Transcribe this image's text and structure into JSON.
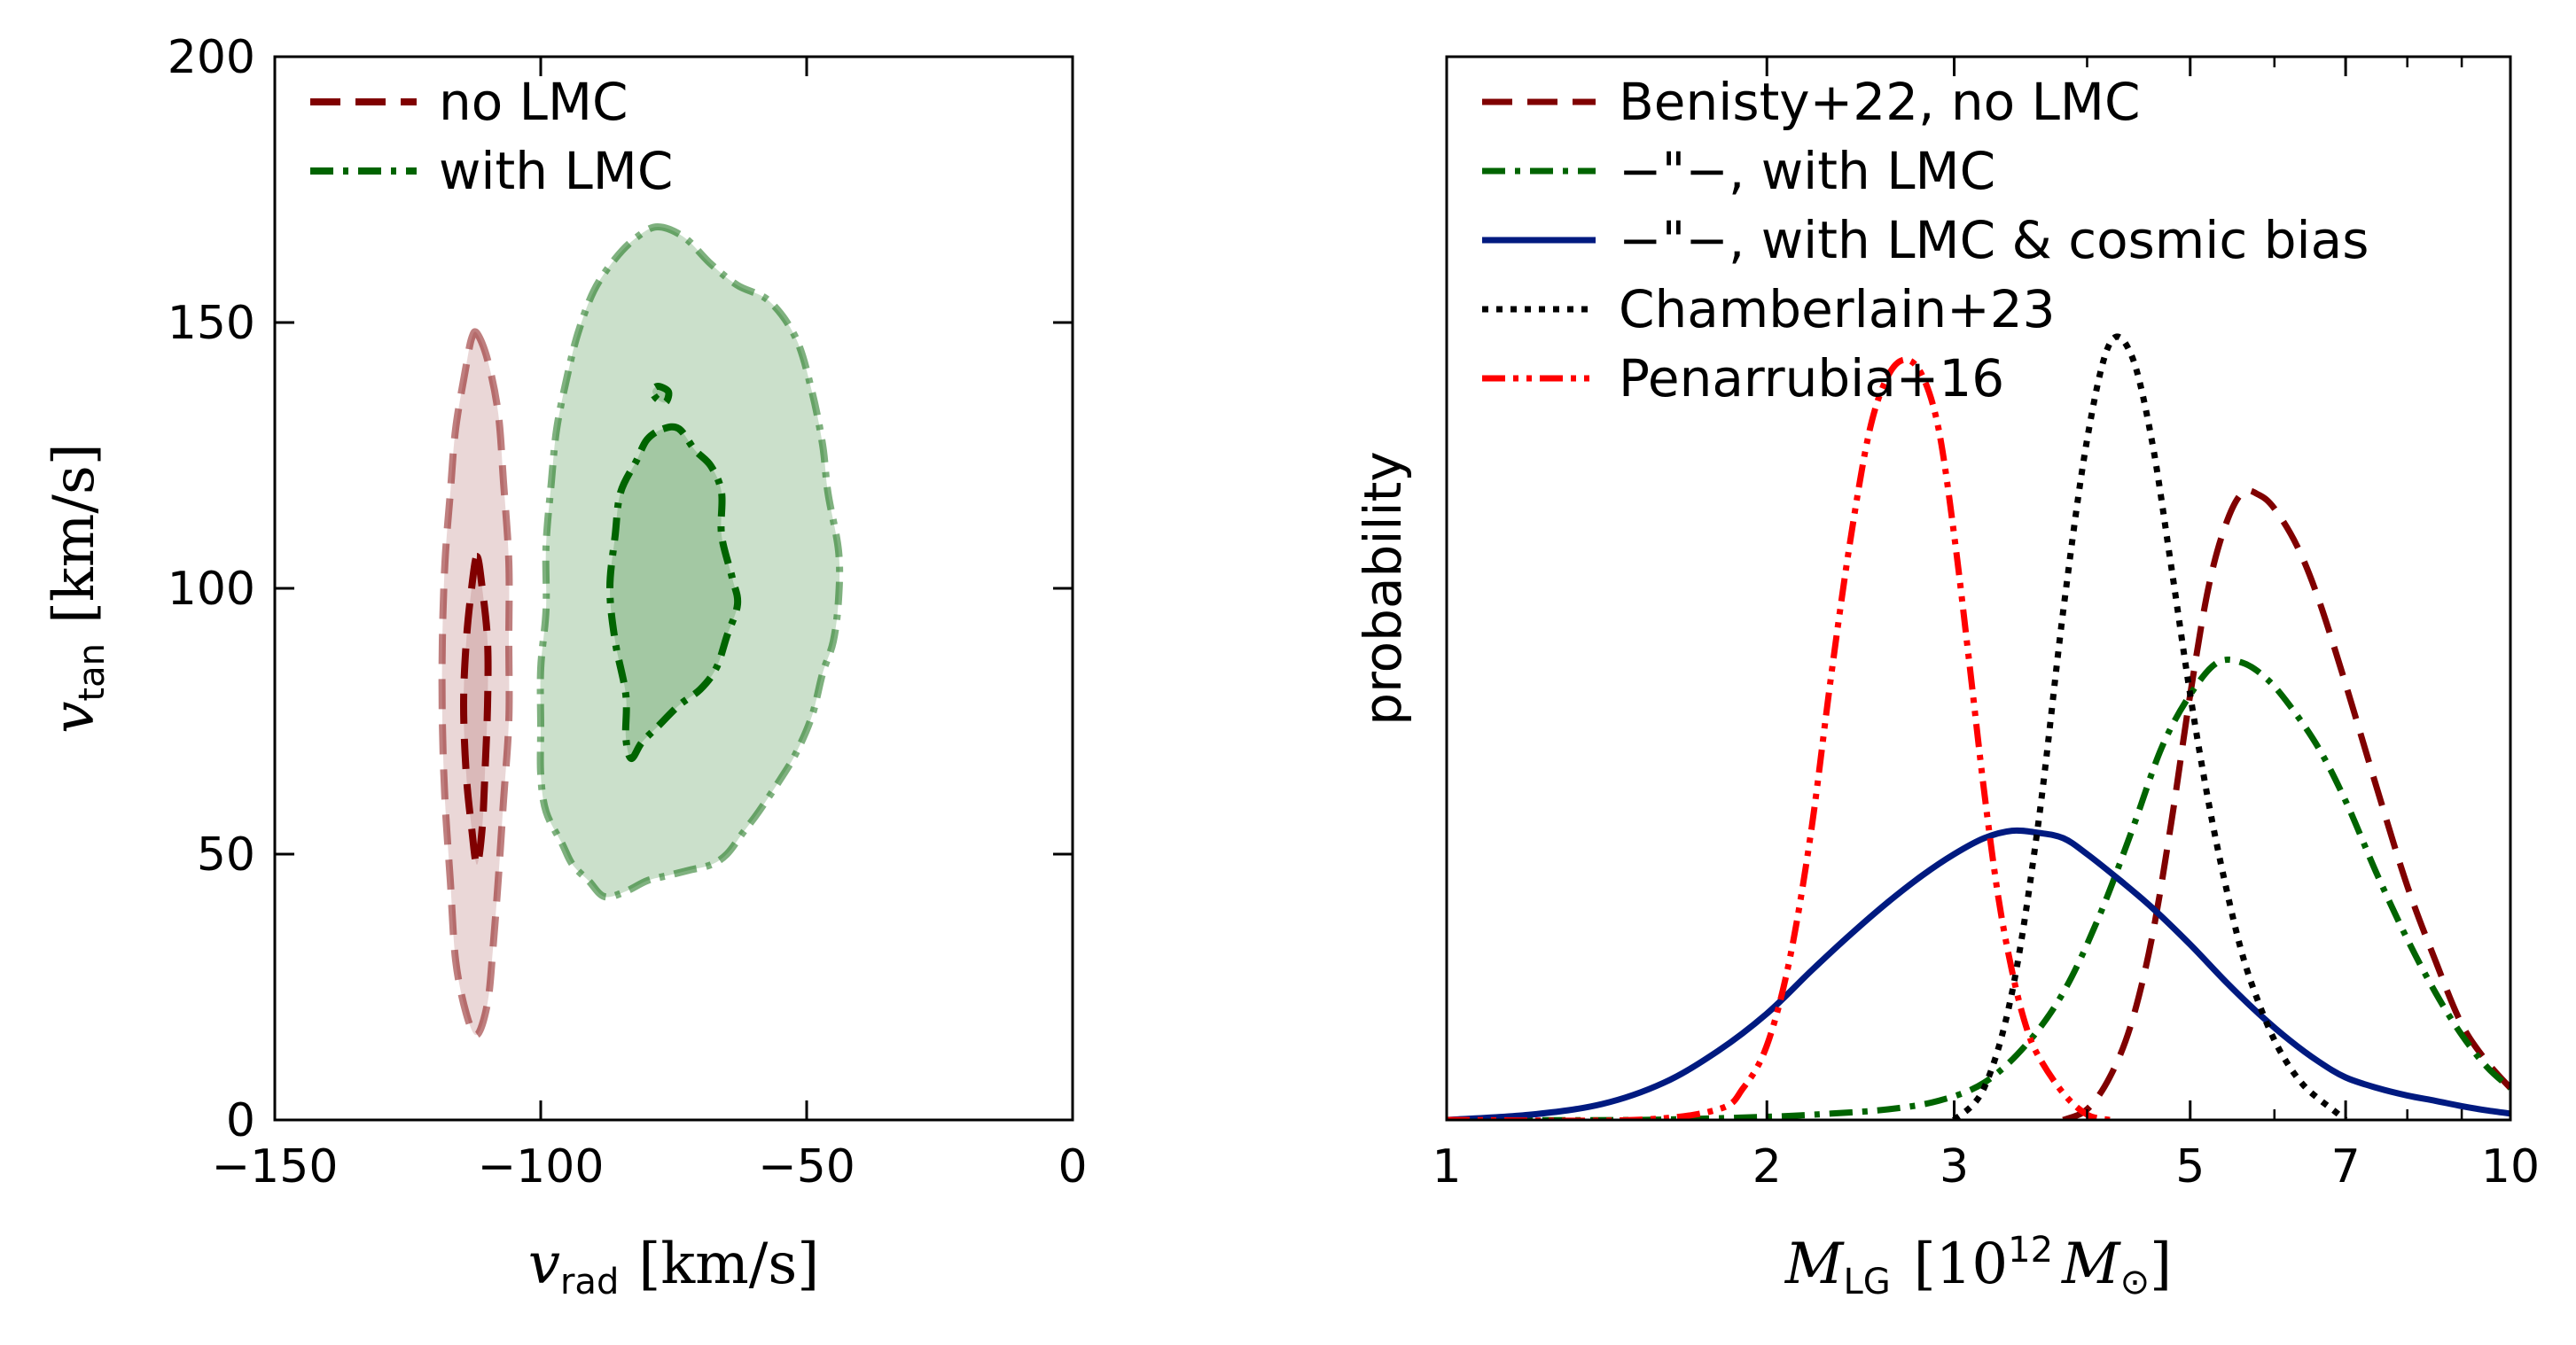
{
  "chart_data": [
    {
      "type": "contour",
      "title": "",
      "xlabel": {
        "symbol": "v",
        "subscript": "rad",
        "unit": "[km/s]"
      },
      "ylabel": {
        "symbol": "v",
        "subscript": "tan",
        "unit": "[km/s]"
      },
      "xlim": [
        -150,
        0
      ],
      "ylim": [
        0,
        200
      ],
      "xticks": [
        -150,
        -100,
        -50,
        0
      ],
      "xtick_labels": [
        "−150",
        "−100",
        "−50",
        "0"
      ],
      "yticks": [
        0,
        50,
        100,
        150,
        200
      ],
      "ytick_labels": [
        "0",
        "50",
        "100",
        "150",
        "200"
      ],
      "legend_position": "top-left",
      "series": [
        {
          "name": "no LMC",
          "color": "#800000",
          "fill": "#d9b7b7",
          "dash": "dashed",
          "outer": [
            [
              -112,
              148
            ],
            [
              -110,
              143
            ],
            [
              -108,
              133
            ],
            [
              -107,
              120
            ],
            [
              -106,
              105
            ],
            [
              -106,
              90
            ],
            [
              -106,
              75
            ],
            [
              -107,
              60
            ],
            [
              -108,
              45
            ],
            [
              -109,
              32
            ],
            [
              -110,
              22
            ],
            [
              -112,
              16
            ],
            [
              -114,
              20
            ],
            [
              -116,
              30
            ],
            [
              -117,
              45
            ],
            [
              -118,
              60
            ],
            [
              -118.5,
              75
            ],
            [
              -118.5,
              90
            ],
            [
              -118,
              105
            ],
            [
              -117,
              118
            ],
            [
              -116,
              130
            ],
            [
              -114,
              142
            ],
            [
              -113,
              147
            ]
          ],
          "inner": [
            [
              -112,
              106
            ],
            [
              -111,
              100
            ],
            [
              -110,
              90
            ],
            [
              -110,
              78
            ],
            [
              -110.5,
              65
            ],
            [
              -111,
              55
            ],
            [
              -112,
              48
            ],
            [
              -113,
              55
            ],
            [
              -114,
              65
            ],
            [
              -114.5,
              78
            ],
            [
              -114,
              90
            ],
            [
              -113,
              100
            ]
          ]
        },
        {
          "name": "with LMC",
          "color": "#006400",
          "fill": "#a0c6a0",
          "dash": "dashdot",
          "outer": [
            [
              -78,
              168
            ],
            [
              -73,
              166
            ],
            [
              -68,
              161
            ],
            [
              -63,
              157
            ],
            [
              -57,
              154
            ],
            [
              -52,
              147
            ],
            [
              -49,
              137
            ],
            [
              -47,
              127
            ],
            [
              -46,
              118
            ],
            [
              -44,
              107
            ],
            [
              -44,
              98
            ],
            [
              -45,
              90
            ],
            [
              -47,
              84
            ],
            [
              -49,
              76
            ],
            [
              -52,
              69
            ],
            [
              -55,
              64
            ],
            [
              -59,
              58
            ],
            [
              -62,
              54
            ],
            [
              -65,
              50
            ],
            [
              -68,
              48
            ],
            [
              -72,
              47
            ],
            [
              -76,
              46
            ],
            [
              -80,
              45
            ],
            [
              -84,
              43
            ],
            [
              -88,
              42
            ],
            [
              -91,
              45
            ],
            [
              -94,
              48
            ],
            [
              -96,
              52
            ],
            [
              -99,
              58
            ],
            [
              -100,
              65
            ],
            [
              -100,
              74
            ],
            [
              -100,
              85
            ],
            [
              -99,
              96
            ],
            [
              -99,
              108
            ],
            [
              -98,
              120
            ],
            [
              -97,
              130
            ],
            [
              -95,
              140
            ],
            [
              -93,
              148
            ],
            [
              -90,
              156
            ],
            [
              -86,
              162
            ],
            [
              -82,
              166
            ]
          ],
          "inner": [
            [
              -77,
              130
            ],
            [
              -74,
              130
            ],
            [
              -71,
              126
            ],
            [
              -68,
              123
            ],
            [
              -66,
              118
            ],
            [
              -66,
              110
            ],
            [
              -64,
              102
            ],
            [
              -63,
              97
            ],
            [
              -65,
              91
            ],
            [
              -67,
              85
            ],
            [
              -70,
              81
            ],
            [
              -74,
              78
            ],
            [
              -78,
              74
            ],
            [
              -81,
              71
            ],
            [
              -83,
              68
            ],
            [
              -84,
              72
            ],
            [
              -84,
              80
            ],
            [
              -86,
              90
            ],
            [
              -87,
              100
            ],
            [
              -86,
              110
            ],
            [
              -85,
              118
            ],
            [
              -82,
              124
            ],
            [
              -80,
              128
            ]
          ],
          "islands": [
            [
              [
                -78,
                138
              ],
              [
                -76,
                137
              ],
              [
                -76.5,
                135
              ],
              [
                -78,
                135.5
              ],
              [
                -79,
                137
              ]
            ]
          ]
        }
      ]
    },
    {
      "type": "line",
      "title": "",
      "xscale": "log",
      "xlabel": {
        "symbol": "M",
        "subscript": "LG",
        "unit": "[10",
        "superscript": "12",
        "unit_symbol": "M",
        "unit_subscript": "⊙",
        "unit_close": "]"
      },
      "ylabel": "probability",
      "xlim": [
        1,
        10
      ],
      "ylim": [
        0,
        1
      ],
      "xticks": [
        1,
        2,
        3,
        5,
        7,
        10
      ],
      "xtick_labels": [
        "1",
        "2",
        "3",
        "5",
        "7",
        "10"
      ],
      "legend_position": "top-left",
      "series": [
        {
          "name": "Benisty+22, no LMC",
          "color": "#800000",
          "dash": "dashed",
          "x": [
            3.8,
            4.0,
            4.2,
            4.4,
            4.6,
            4.8,
            5.0,
            5.2,
            5.4,
            5.6,
            5.8,
            6.0,
            6.3,
            6.6,
            7.0,
            7.5,
            8.0,
            8.5,
            9.0,
            9.5,
            10.0
          ],
          "y": [
            0,
            0.01,
            0.04,
            0.09,
            0.17,
            0.28,
            0.4,
            0.5,
            0.56,
            0.59,
            0.588,
            0.575,
            0.54,
            0.49,
            0.41,
            0.31,
            0.22,
            0.15,
            0.09,
            0.055,
            0.03
          ]
        },
        {
          "name": "−\"−, with LMC",
          "color": "#006400",
          "dash": "dashdot",
          "x": [
            1.0,
            1.5,
            2.0,
            2.3,
            2.6,
            2.9,
            3.2,
            3.5,
            3.8,
            4.1,
            4.4,
            4.7,
            5.0,
            5.3,
            5.6,
            5.9,
            6.2,
            6.6,
            7.0,
            7.5,
            8.0,
            8.5,
            9.0,
            9.5,
            10.0
          ],
          "y": [
            0,
            0,
            0.003,
            0.006,
            0.01,
            0.018,
            0.035,
            0.07,
            0.12,
            0.19,
            0.27,
            0.35,
            0.4,
            0.43,
            0.43,
            0.415,
            0.39,
            0.35,
            0.3,
            0.23,
            0.17,
            0.12,
            0.08,
            0.05,
            0.03
          ]
        },
        {
          "name": "−\"−, with LMC & cosmic bias",
          "color": "#001a80",
          "dash": "solid",
          "x": [
            1.0,
            1.2,
            1.4,
            1.6,
            1.8,
            2.0,
            2.2,
            2.4,
            2.6,
            2.8,
            3.0,
            3.2,
            3.4,
            3.6,
            3.8,
            4.0,
            4.3,
            4.6,
            5.0,
            5.4,
            5.8,
            6.2,
            6.6,
            7.0,
            7.5,
            8.0,
            8.5,
            9.0,
            9.5,
            10.0
          ],
          "y": [
            0,
            0.005,
            0.015,
            0.035,
            0.065,
            0.1,
            0.14,
            0.175,
            0.205,
            0.23,
            0.25,
            0.265,
            0.272,
            0.27,
            0.265,
            0.25,
            0.225,
            0.2,
            0.165,
            0.13,
            0.1,
            0.075,
            0.055,
            0.04,
            0.03,
            0.023,
            0.018,
            0.013,
            0.009,
            0.006
          ]
        },
        {
          "name": "Chamberlain+23",
          "color": "#000000",
          "dash": "dotted",
          "x": [
            3.0,
            3.2,
            3.4,
            3.6,
            3.8,
            4.0,
            4.2,
            4.4,
            4.6,
            4.8,
            5.0,
            5.2,
            5.4,
            5.6,
            5.8,
            6.0,
            6.2,
            6.4,
            6.6,
            6.8,
            7.0
          ],
          "y": [
            0,
            0.03,
            0.12,
            0.28,
            0.48,
            0.64,
            0.73,
            0.72,
            0.64,
            0.52,
            0.4,
            0.3,
            0.22,
            0.155,
            0.11,
            0.075,
            0.05,
            0.032,
            0.02,
            0.01,
            0.0
          ]
        },
        {
          "name": "Penarrubia+16",
          "color": "#ff0000",
          "dash": "dashdotdot",
          "x": [
            1.0,
            1.5,
            1.8,
            1.9,
            2.0,
            2.1,
            2.2,
            2.3,
            2.4,
            2.5,
            2.6,
            2.7,
            2.8,
            2.9,
            3.0,
            3.1,
            3.2,
            3.3,
            3.4,
            3.5,
            3.6,
            3.8,
            4.0,
            4.2
          ],
          "y": [
            0,
            0,
            0.01,
            0.03,
            0.07,
            0.15,
            0.27,
            0.42,
            0.55,
            0.65,
            0.7,
            0.715,
            0.7,
            0.65,
            0.55,
            0.43,
            0.31,
            0.21,
            0.14,
            0.09,
            0.06,
            0.025,
            0.005,
            0
          ]
        }
      ]
    }
  ]
}
